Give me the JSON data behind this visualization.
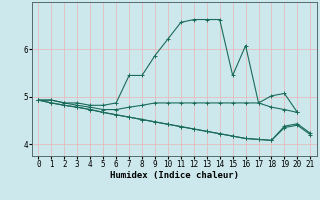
{
  "xlabel": "Humidex (Indice chaleur)",
  "background_color": "#cce8ec",
  "grid_color": "#e8b4b4",
  "line_color": "#1a6b5a",
  "xlim": [
    -0.5,
    21.5
  ],
  "ylim": [
    3.75,
    7.0
  ],
  "yticks": [
    4,
    5,
    6
  ],
  "xticks": [
    0,
    1,
    2,
    3,
    4,
    5,
    6,
    7,
    8,
    9,
    10,
    11,
    12,
    13,
    14,
    15,
    16,
    17,
    18,
    19,
    20,
    21
  ],
  "series": [
    [
      4.93,
      4.93,
      4.87,
      4.87,
      4.82,
      4.82,
      4.87,
      5.45,
      5.45,
      5.87,
      6.22,
      6.57,
      6.63,
      6.63,
      6.63,
      5.45,
      6.08,
      4.87,
      5.02,
      5.07,
      4.67,
      null
    ],
    [
      4.93,
      4.93,
      4.87,
      4.82,
      4.78,
      4.73,
      4.73,
      4.78,
      4.82,
      4.87,
      4.87,
      4.87,
      4.87,
      4.87,
      4.87,
      4.87,
      4.87,
      4.87,
      4.78,
      4.73,
      4.67,
      null
    ],
    [
      4.93,
      4.87,
      4.82,
      4.78,
      4.73,
      4.67,
      4.62,
      4.57,
      4.52,
      4.47,
      4.42,
      4.37,
      4.32,
      4.27,
      4.22,
      4.17,
      4.12,
      4.1,
      4.08,
      4.38,
      4.43,
      4.23
    ],
    [
      4.93,
      4.87,
      4.82,
      4.78,
      4.73,
      4.67,
      4.62,
      4.57,
      4.52,
      4.47,
      4.42,
      4.37,
      4.32,
      4.27,
      4.22,
      4.17,
      4.12,
      4.1,
      4.08,
      4.35,
      4.4,
      4.2
    ]
  ],
  "marker": "+",
  "markersize": 3,
  "linewidth": 0.8,
  "xlabel_fontsize": 6.5,
  "tick_fontsize": 5.5
}
